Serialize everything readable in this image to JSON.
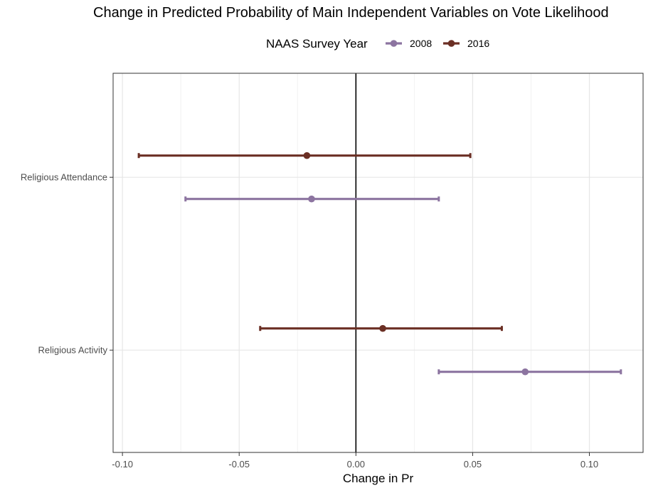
{
  "chart_data": {
    "type": "forest",
    "title": "Change in Predicted Probability of Main Independent Variables on Vote Likelihood",
    "xlabel": "Change in Pr",
    "ylabel": "",
    "xlim": [
      -0.104,
      0.123
    ],
    "x_ticks": [
      -0.1,
      -0.05,
      0.0,
      0.05,
      0.1
    ],
    "x_tick_labels": [
      "-0.10",
      "-0.05",
      "0.00",
      "0.05",
      "0.10"
    ],
    "categories": [
      "Religious Attendance",
      "Religious Activity"
    ],
    "legend": {
      "title": "NAAS Survey Year",
      "position": "top"
    },
    "reference_line_x": 0,
    "grid": true,
    "series": [
      {
        "name": "2016",
        "color": "#6b2f24",
        "points": [
          {
            "category": "Religious Attendance",
            "estimate": -0.021,
            "lower": -0.093,
            "upper": 0.049
          },
          {
            "category": "Religious Activity",
            "estimate": 0.0115,
            "lower": -0.041,
            "upper": 0.0625
          }
        ]
      },
      {
        "name": "2008",
        "color": "#8c74a0",
        "points": [
          {
            "category": "Religious Attendance",
            "estimate": -0.019,
            "lower": -0.073,
            "upper": 0.0355
          },
          {
            "category": "Religious Activity",
            "estimate": 0.0725,
            "lower": 0.0355,
            "upper": 0.1135
          }
        ]
      }
    ],
    "legend_order": [
      "2008",
      "2016"
    ]
  }
}
